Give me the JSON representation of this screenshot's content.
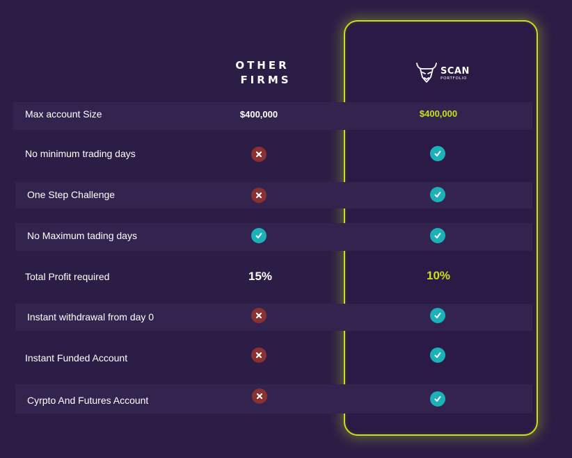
{
  "header": {
    "other_firms_line1": "OTHER",
    "other_firms_line2": "FIRMS",
    "brand_name": "SCAN",
    "brand_sub": "PORTFOLIO"
  },
  "colors": {
    "background": "#2c1d46",
    "accent": "#c6e21d",
    "check": "#1cb0b9",
    "cross": "#8a3131"
  },
  "rows": [
    {
      "label": "Max account Size",
      "other": "$400,000",
      "scan": "$400,000"
    },
    {
      "label": "No minimum trading days",
      "other": "cross-icon",
      "scan": "check-icon"
    },
    {
      "label": "One Step Challenge",
      "other": "cross-icon",
      "scan": "check-icon"
    },
    {
      "label": "No Maximum tading days",
      "other": "check-icon",
      "scan": "check-icon"
    },
    {
      "label": "Total Profit required",
      "other": "15%",
      "scan": "10%"
    },
    {
      "label": "Instant withdrawal from day 0",
      "other": "cross-icon",
      "scan": "check-icon"
    },
    {
      "label": "Instant Funded Account",
      "other": "cross-icon",
      "scan": "check-icon"
    },
    {
      "label": "Cyrpto And Futures Account",
      "other": "cross-icon",
      "scan": "check-icon"
    }
  ]
}
